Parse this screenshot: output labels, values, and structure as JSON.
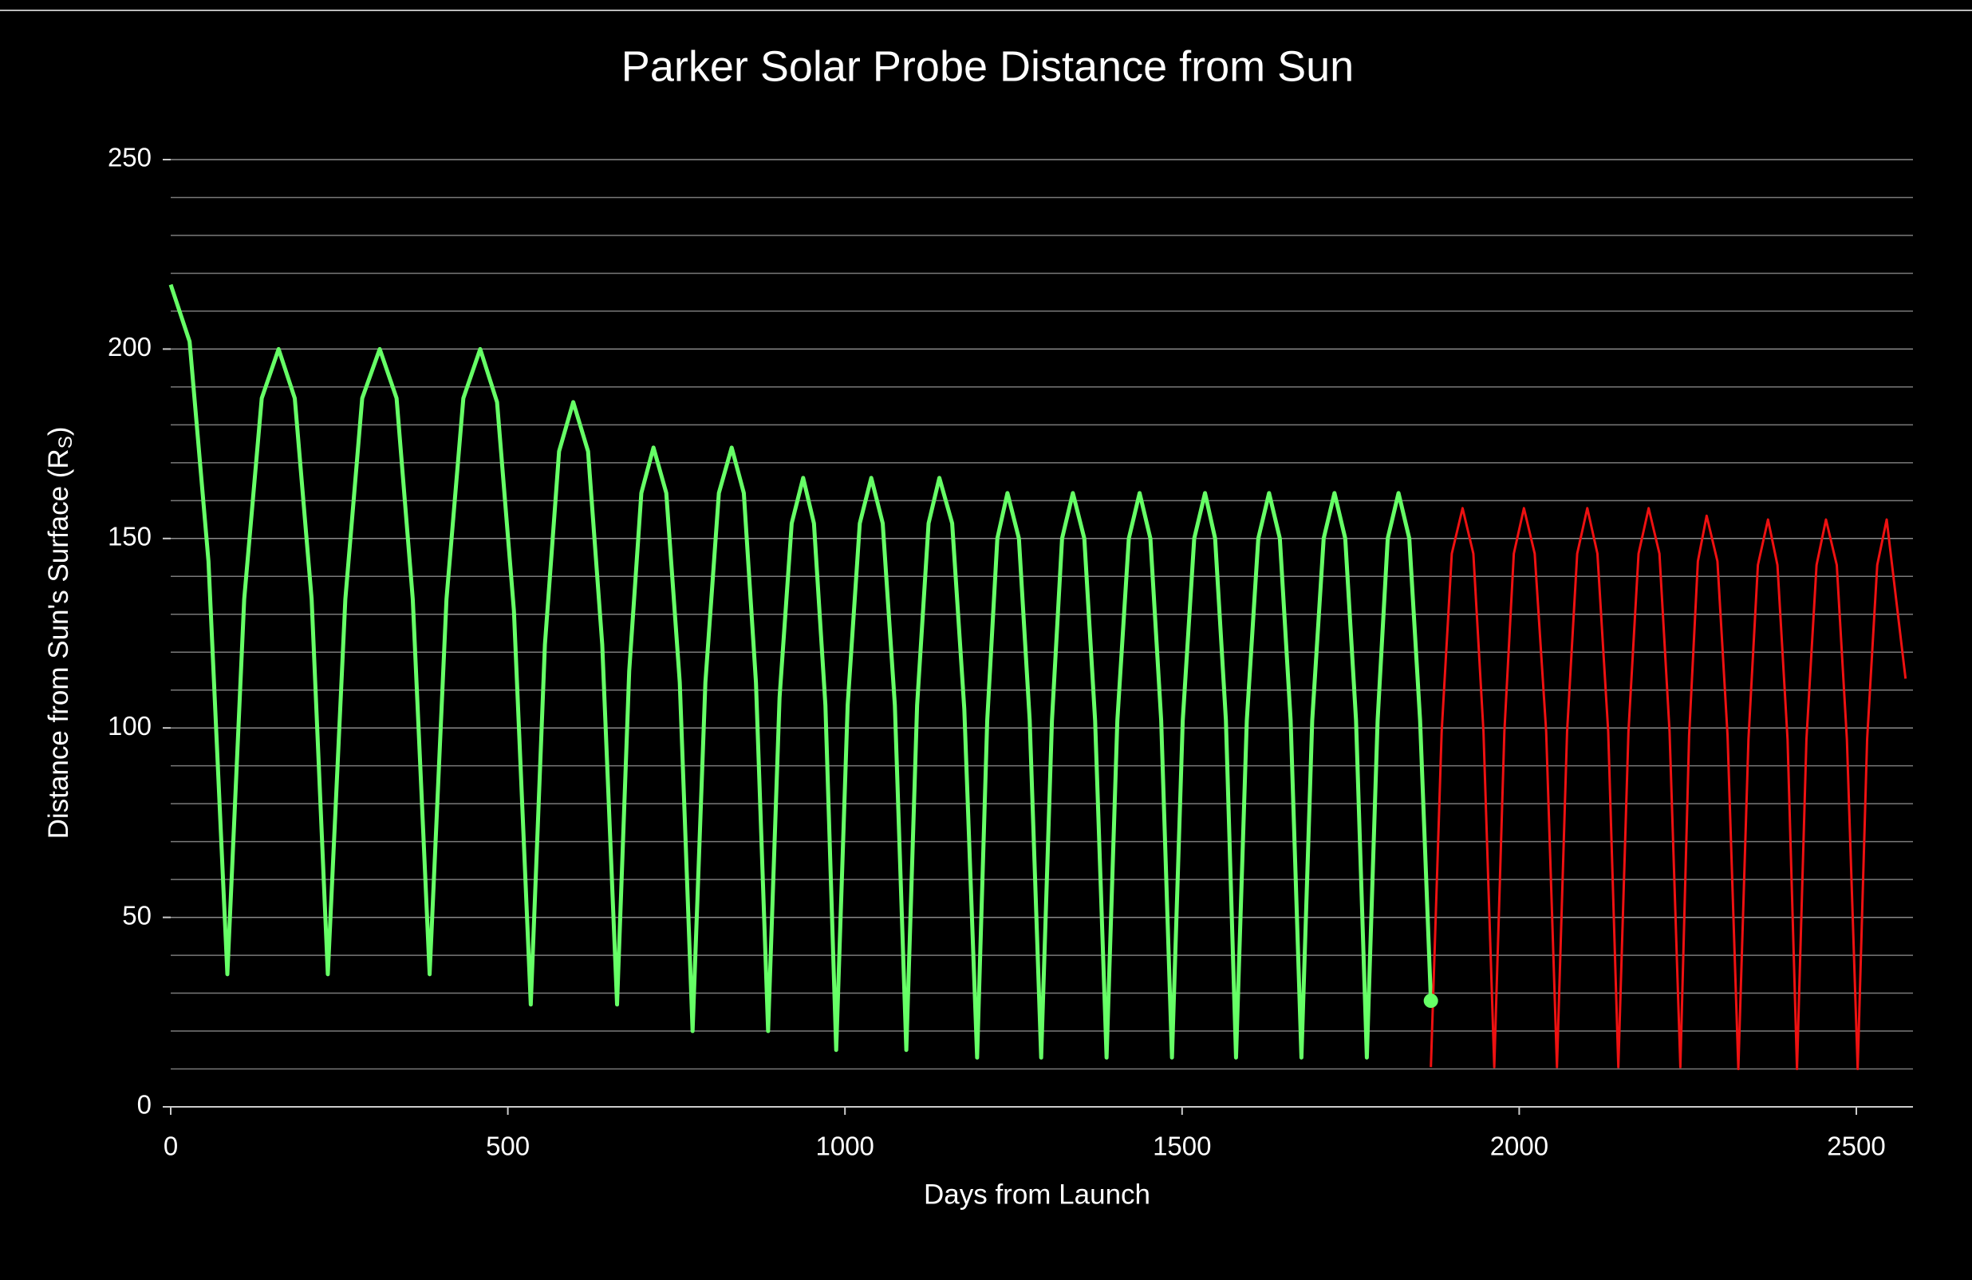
{
  "chart_data": {
    "type": "line",
    "title": "Parker Solar Probe Distance from Sun",
    "xlabel": "Days from Launch",
    "ylabel": {
      "text": "Distance from Sun's Surface (R",
      "subscript": "S",
      "close": ")"
    },
    "xlim": [
      0,
      2584
    ],
    "ylim": [
      0,
      250
    ],
    "xticks": [
      0,
      500,
      1000,
      1500,
      2000,
      2500
    ],
    "yticks": [
      0,
      50,
      100,
      150,
      200,
      250
    ],
    "y_minor_ticks": [
      10,
      20,
      30,
      40,
      60,
      70,
      80,
      90,
      110,
      120,
      130,
      140,
      160,
      170,
      180,
      190,
      210,
      220,
      230,
      240
    ],
    "grid": true,
    "series": [
      {
        "color": "#66ff66",
        "width": 5,
        "x": [
          0,
          28,
          56,
          84,
          109,
          135,
          160,
          184,
          209,
          233,
          259,
          284,
          310,
          335,
          359,
          384,
          409,
          434,
          459,
          484,
          509,
          534,
          555,
          576,
          597,
          619,
          640,
          662,
          680,
          698,
          716,
          735,
          755,
          774,
          793,
          813,
          832,
          850,
          868,
          886,
          903,
          921,
          938,
          954,
          971,
          987,
          1004,
          1022,
          1039,
          1056,
          1074,
          1091,
          1107,
          1124,
          1140,
          1159,
          1177,
          1196,
          1211,
          1226,
          1241,
          1258,
          1274,
          1291,
          1307,
          1322,
          1338,
          1355,
          1371,
          1388,
          1404,
          1421,
          1437,
          1453,
          1469,
          1485,
          1501,
          1518,
          1534,
          1549,
          1565,
          1580,
          1596,
          1613,
          1629,
          1645,
          1661,
          1677,
          1693,
          1710,
          1726,
          1742,
          1758,
          1774,
          1790,
          1805,
          1821,
          1837,
          1853,
          1869
        ],
        "values": [
          217,
          202,
          144,
          35,
          134,
          187,
          200,
          187,
          134,
          35,
          134,
          187,
          200,
          187,
          134,
          35,
          134,
          187,
          200,
          186,
          131,
          27,
          122,
          173,
          186,
          173,
          122,
          27,
          115,
          162,
          174,
          162,
          112,
          20,
          112,
          162,
          174,
          162,
          112,
          20,
          108,
          154,
          166,
          154,
          106,
          15,
          106,
          154,
          166,
          154,
          106,
          15,
          106,
          154,
          166,
          154,
          105,
          13,
          102,
          150,
          162,
          150,
          102,
          13,
          102,
          150,
          162,
          150,
          102,
          13,
          102,
          150,
          162,
          150,
          102,
          13,
          102,
          150,
          162,
          150,
          102,
          13,
          102,
          150,
          162,
          150,
          102,
          13,
          102,
          150,
          162,
          150,
          102,
          13,
          102,
          150,
          162,
          150,
          102,
          28
        ]
      },
      {
        "color": "#ee1111",
        "width": 3,
        "x": [
          1869,
          1885,
          1900,
          1916,
          1932,
          1947,
          1963,
          1978,
          1992,
          2007,
          2023,
          2040,
          2056,
          2071,
          2086,
          2101,
          2116,
          2132,
          2147,
          2162,
          2177,
          2192,
          2208,
          2223,
          2239,
          2252,
          2265,
          2278,
          2294,
          2309,
          2325,
          2340,
          2354,
          2369,
          2383,
          2398,
          2412,
          2426,
          2441,
          2455,
          2471,
          2486,
          2502,
          2516,
          2531,
          2545,
          2573
        ],
        "values": [
          10.5,
          99,
          146,
          158,
          146,
          99,
          10.5,
          99,
          146,
          158,
          146,
          99,
          10.5,
          99,
          146,
          158,
          146,
          99,
          10.5,
          99,
          146,
          158,
          146,
          99,
          10.5,
          98,
          144,
          156,
          144,
          98,
          10,
          97,
          143,
          155,
          143,
          97,
          10,
          97,
          143,
          155,
          143,
          97,
          10,
          97,
          143,
          155,
          113
        ]
      }
    ],
    "current_position": {
      "x": 1869,
      "y": 28,
      "color": "#66ff66"
    }
  }
}
